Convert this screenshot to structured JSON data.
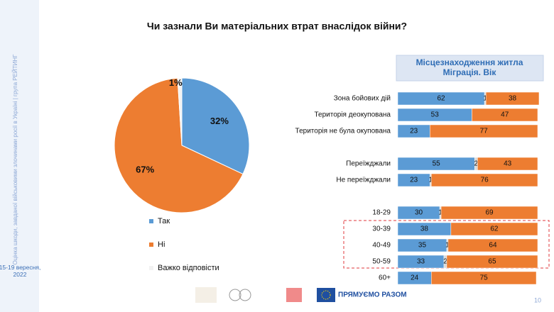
{
  "slide": {
    "sidebar": "Оцінка шкоди, завданої військовими злочинами росії в Україні | група РЕЙТИНГ",
    "date": "15-19 вересня, 2022",
    "logo_text": "ПРЯМУЄМО РАЗОМ",
    "page": "10"
  },
  "chart_data": [
    {
      "type": "pie",
      "title": "Чи зазнали Ви матеріальних втрат внаслідок війни?",
      "categories": [
        "Так",
        "Ні",
        "Важко відповісти"
      ],
      "values": [
        32,
        67,
        1
      ],
      "value_labels": [
        "32%",
        "67%",
        "1%"
      ],
      "colors": [
        "#5b9bd5",
        "#ed7d31",
        "#f2f2f2"
      ]
    },
    {
      "type": "stacked_bar",
      "title": "Місцезнаходження житла\nМіграція. Вік",
      "categories": [
        "Зона бойових дій",
        "Територія деокупована",
        "Територія не була окупована",
        null,
        "Переїжджали",
        "Не переїжджали",
        null,
        "18-29",
        "30-39",
        "40-49",
        "50-59",
        "60+"
      ],
      "xlim": [
        0,
        100
      ],
      "series": [
        {
          "color": "#5b9bd5",
          "values": [
            62,
            53,
            23,
            null,
            55,
            23,
            null,
            30,
            38,
            35,
            33,
            24
          ]
        },
        {
          "color": "#d9d9d9",
          "values": [
            1,
            null,
            null,
            null,
            2,
            1,
            null,
            1,
            null,
            1,
            2,
            null
          ]
        },
        {
          "color": "#ed7d31",
          "values": [
            38,
            47,
            77,
            null,
            43,
            76,
            null,
            69,
            62,
            64,
            65,
            75
          ]
        }
      ]
    }
  ]
}
